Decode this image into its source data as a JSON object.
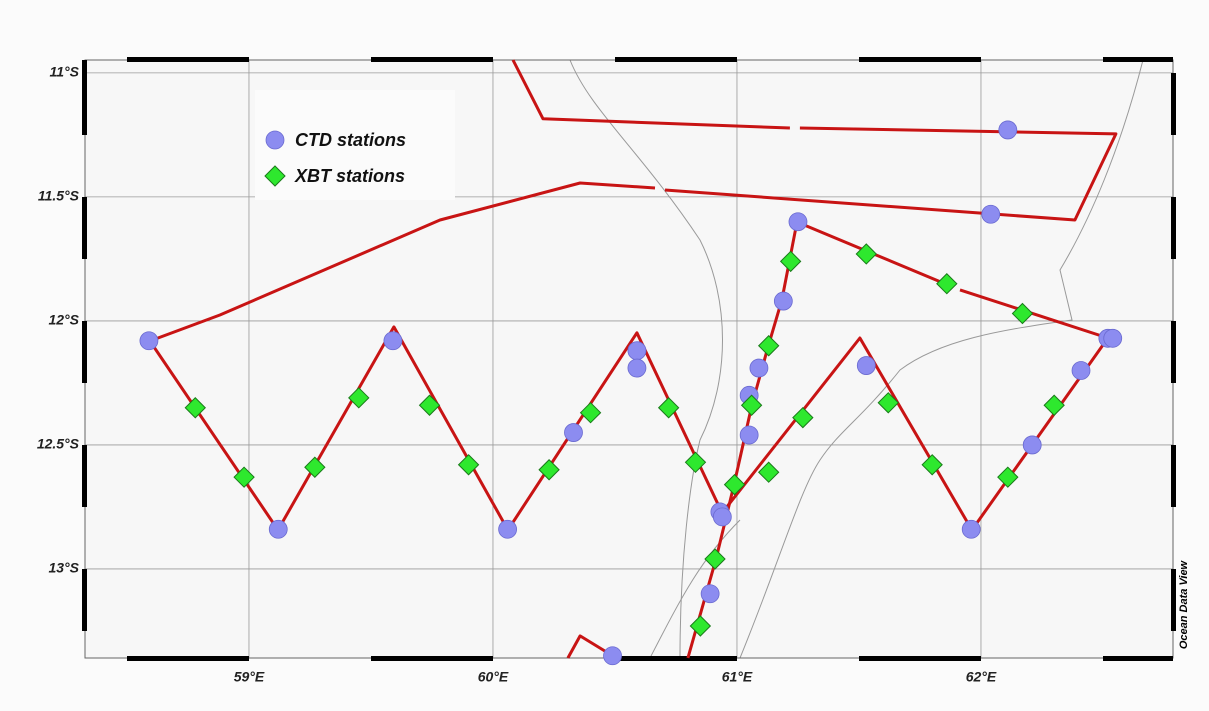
{
  "chart_data": {
    "type": "map",
    "xlim": [
      58.328,
      62.787
    ],
    "ylim": [
      -13.359,
      -10.948
    ],
    "xticks": [
      {
        "value": 59,
        "label": "59°E"
      },
      {
        "value": 60,
        "label": "60°E"
      },
      {
        "value": 61,
        "label": "61°E"
      },
      {
        "value": 62,
        "label": "62°E"
      }
    ],
    "yticks": [
      {
        "value": -11,
        "label": "11°S"
      },
      {
        "value": -11.5,
        "label": "11.5°S"
      },
      {
        "value": -12,
        "label": "12°S"
      },
      {
        "value": -12.5,
        "label": "12.5°S"
      },
      {
        "value": -13,
        "label": "13°S"
      }
    ],
    "grid": true,
    "legend": "upper-left",
    "credit": "Ocean Data View",
    "tracks": [
      {
        "color": "#c81414",
        "x": [
          60.082,
          60.205,
          61.217,
          null,
          61.258,
          62.553,
          62.385,
          60.705,
          null,
          60.664,
          60.357,
          59.783,
          58.881,
          58.594,
          59.119,
          59.594,
          60.061,
          60.59,
          60.939,
          61.504,
          61.963,
          62.52
        ],
        "values": [
          -10.948,
          -11.185,
          -11.222,
          null,
          -11.222,
          -11.246,
          -11.593,
          -11.472,
          null,
          -11.464,
          -11.444,
          -11.593,
          -11.976,
          -12.081,
          -12.843,
          -12.024,
          -12.843,
          -12.048,
          -12.774,
          -12.069,
          -12.843,
          -12.069
        ]
      },
      {
        "color": "#c81414",
        "x": [
          60.799,
          60.914,
          60.988,
          61.061,
          61.127,
          61.184,
          61.246,
          61.865,
          null,
          61.914,
          62.52
        ],
        "values": [
          -13.359,
          -12.96,
          -12.661,
          -12.339,
          -12.105,
          -11.915,
          -11.601,
          -11.855,
          null,
          -11.875,
          -12.069
        ]
      },
      {
        "color": "#c81414",
        "x": [
          60.307,
          60.357,
          60.492
        ],
        "values": [
          -13.359,
          -13.27,
          -13.351
        ]
      }
    ],
    "series": [
      {
        "name": "CTD stations",
        "color": "#8c8cf0",
        "marker": "circle",
        "x": [
          62.11,
          62.04,
          58.59,
          59.59,
          59.12,
          60.06,
          60.33,
          60.59,
          60.59,
          61.25,
          61.19,
          61.09,
          61.05,
          61.05,
          60.93,
          60.94,
          60.89,
          60.49,
          61.53,
          61.96,
          62.21,
          62.41,
          62.52,
          62.54
        ],
        "values": [
          -11.23,
          -11.57,
          -12.08,
          -12.08,
          -12.84,
          -12.84,
          -12.45,
          -12.12,
          -12.19,
          -11.6,
          -11.92,
          -12.19,
          -12.3,
          -12.46,
          -12.77,
          -12.79,
          -13.1,
          -13.35,
          -12.18,
          -12.84,
          -12.5,
          -12.2,
          -12.07,
          -12.07
        ]
      },
      {
        "name": "XBT stations",
        "color": "#2ee82e",
        "marker": "diamond",
        "x": [
          58.78,
          58.98,
          59.27,
          59.45,
          59.74,
          59.9,
          60.23,
          60.4,
          60.72,
          60.83,
          60.99,
          60.91,
          60.85,
          61.06,
          61.13,
          61.22,
          61.53,
          61.86,
          62.17,
          61.13,
          61.27,
          61.62,
          61.8,
          62.11,
          62.3
        ],
        "values": [
          -12.35,
          -12.63,
          -12.59,
          -12.31,
          -12.34,
          -12.58,
          -12.6,
          -12.37,
          -12.35,
          -12.57,
          -12.66,
          -12.96,
          -13.23,
          -12.34,
          -12.1,
          -11.76,
          -11.73,
          -11.85,
          -11.97,
          -12.61,
          -12.39,
          -12.33,
          -12.58,
          -12.63,
          -12.34
        ]
      }
    ]
  }
}
